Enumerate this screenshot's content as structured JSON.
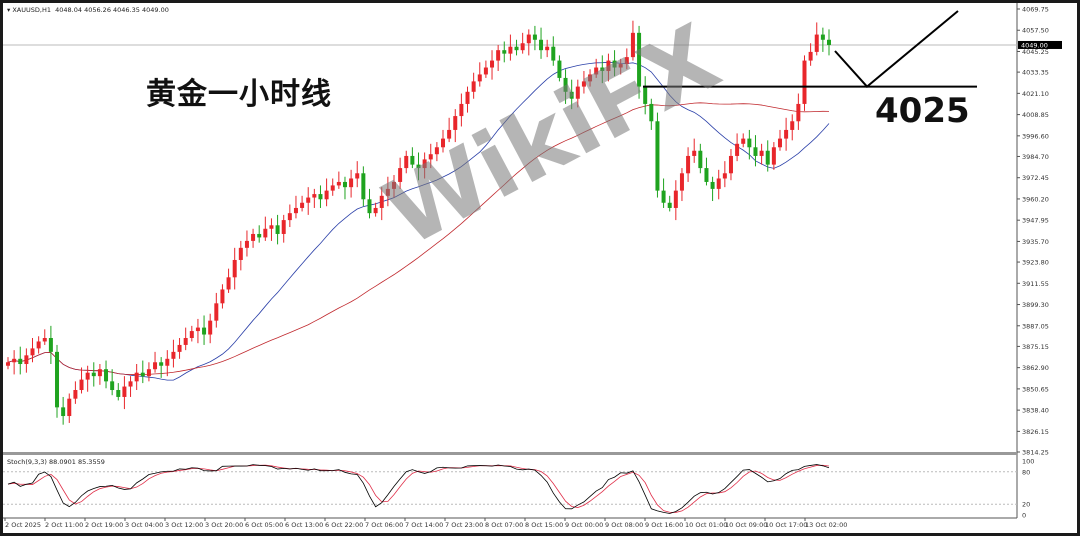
{
  "header": {
    "symbol_label": "XAUUSD,H1",
    "ohlc": "4048.04 4056.26 4046.35 4049.00"
  },
  "annotation": {
    "title": "黄金一小时线",
    "level_label": "4025",
    "level_value": 4025
  },
  "watermark": "WikiFX",
  "stoch": {
    "label": "Stoch(9,3,3) 88.0901 85.3559",
    "levels": [
      "100",
      "80",
      "20",
      "0"
    ]
  },
  "colors": {
    "bull": "#e8262b",
    "bear": "#1fa31f",
    "ma_fast": "#2a3fa8",
    "ma_slow": "#c0282d",
    "stoch_main": "#000000",
    "stoch_signal": "#e0304a"
  },
  "chart_data": {
    "type": "candlestick",
    "ylim": [
      3814.25,
      4069.75
    ],
    "current_price": "4049.00",
    "y_ticks": [
      "4069.75",
      "4057.50",
      "4045.25",
      "4033.35",
      "4021.10",
      "4008.85",
      "3996.60",
      "3984.70",
      "3972.45",
      "3960.20",
      "3947.95",
      "3935.70",
      "3923.80",
      "3911.55",
      "3899.30",
      "3887.05",
      "3875.15",
      "3862.90",
      "3850.65",
      "3838.40",
      "3826.15",
      "3814.25"
    ],
    "x_ticks": [
      "2 Oct 2025",
      "2 Oct 11:00",
      "2 Oct 19:00",
      "3 Oct 04:00",
      "3 Oct 12:00",
      "3 Oct 20:00",
      "6 Oct 05:00",
      "6 Oct 13:00",
      "6 Oct 22:00",
      "7 Oct 06:00",
      "7 Oct 14:00",
      "7 Oct 23:00",
      "8 Oct 07:00",
      "8 Oct 15:00",
      "9 Oct 00:00",
      "9 Oct 08:00",
      "9 Oct 16:00",
      "10 Oct 01:00",
      "10 Oct 09:00",
      "10 Oct 17:00",
      "13 Oct 02:00"
    ],
    "closes": [
      3866,
      3868,
      3865,
      3870,
      3874,
      3878,
      3880,
      3872,
      3840,
      3835,
      3845,
      3850,
      3856,
      3860,
      3858,
      3862,
      3855,
      3850,
      3846,
      3852,
      3855,
      3860,
      3858,
      3862,
      3866,
      3864,
      3868,
      3872,
      3876,
      3880,
      3884,
      3886,
      3882,
      3890,
      3900,
      3908,
      3915,
      3925,
      3932,
      3936,
      3940,
      3938,
      3943,
      3945,
      3940,
      3948,
      3952,
      3955,
      3958,
      3961,
      3963,
      3960,
      3965,
      3968,
      3970,
      3967,
      3972,
      3975,
      3960,
      3952,
      3955,
      3962,
      3966,
      3970,
      3978,
      3985,
      3980,
      3978,
      3983,
      3986,
      3990,
      3995,
      4000,
      4008,
      4015,
      4022,
      4028,
      4032,
      4036,
      4040,
      4046,
      4044,
      4048,
      4046,
      4050,
      4055,
      4052,
      4046,
      4048,
      4040,
      4030,
      4022,
      4018,
      4025,
      4028,
      4032,
      4036,
      4034,
      4040,
      4036,
      4038,
      4042,
      4056,
      4025,
      4015,
      4005,
      3965,
      3958,
      3955,
      3965,
      3975,
      3985,
      3988,
      3978,
      3970,
      3966,
      3972,
      3975,
      3985,
      3992,
      3995,
      3990,
      3985,
      3988,
      3980,
      3990,
      3995,
      4000,
      4005,
      4015,
      4040,
      4045,
      4055,
      4052,
      4049
    ]
  }
}
